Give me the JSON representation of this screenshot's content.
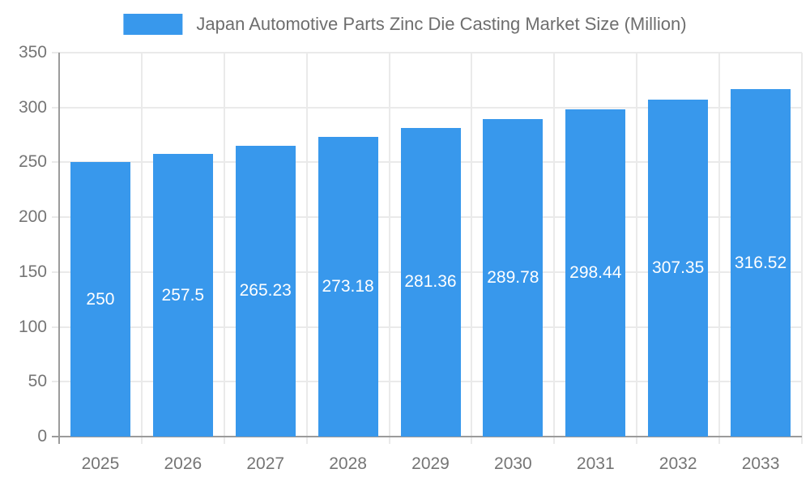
{
  "legend": {
    "label": "Japan Automotive Parts Zinc Die Casting Market Size (Million)"
  },
  "chart_data": {
    "type": "bar",
    "title": "Japan Automotive Parts Zinc Die Casting Market Size (Million)",
    "categories": [
      "2025",
      "2026",
      "2027",
      "2028",
      "2029",
      "2030",
      "2031",
      "2032",
      "2033"
    ],
    "values": [
      250,
      257.5,
      265.23,
      273.18,
      281.36,
      289.78,
      298.44,
      307.35,
      316.52
    ],
    "value_labels": [
      "250",
      "257.5",
      "265.23",
      "273.18",
      "281.36",
      "289.78",
      "298.44",
      "307.35",
      "316.52"
    ],
    "xlabel": "",
    "ylabel": "",
    "ylim": [
      0,
      350
    ],
    "y_ticks": [
      0,
      50,
      100,
      150,
      200,
      250,
      300,
      350
    ],
    "grid": true,
    "legend_position": "top",
    "colors": {
      "bar": "#3898EC",
      "value_label": "#FFFFFF",
      "axis_label": "#757575",
      "title_text": "#6E6E6E",
      "gridline": "#EAEAEA",
      "axis_line": "#9B9B9B"
    }
  }
}
